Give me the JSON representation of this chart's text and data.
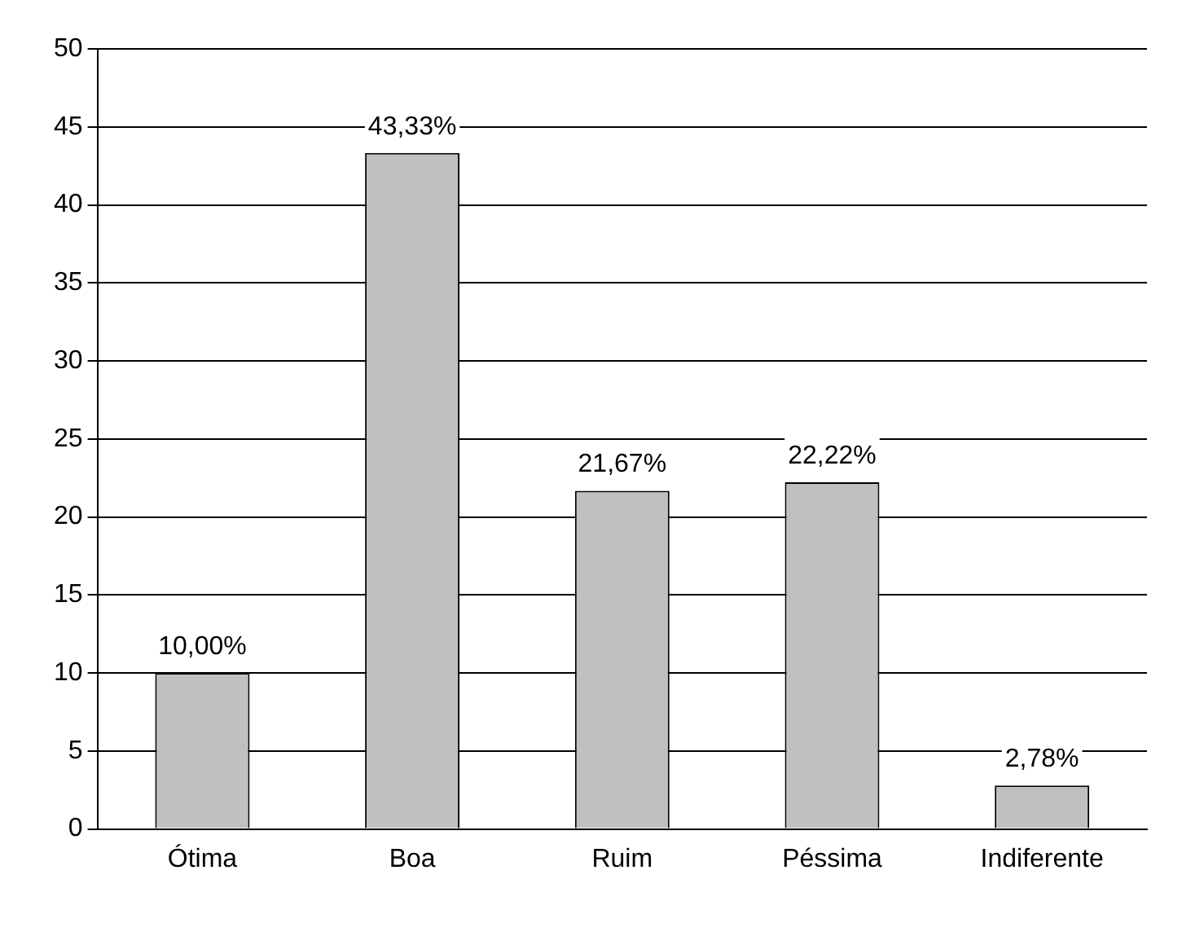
{
  "chart_data": {
    "type": "bar",
    "categories": [
      "Ótima",
      "Boa",
      "Ruim",
      "Péssima",
      "Indiferente"
    ],
    "values": [
      10,
      43.33,
      21.67,
      22.22,
      2.78
    ],
    "color": "#c0c0c0",
    "value_labels": [
      "10,00%",
      "43,33%",
      "21,67%",
      "22,22%",
      "2,78%"
    ],
    "ylim": [
      0,
      50
    ],
    "yticks": [
      0,
      5,
      10,
      15,
      20,
      25,
      30,
      35,
      40,
      45,
      50
    ],
    "grid": "y",
    "legend": false
  }
}
